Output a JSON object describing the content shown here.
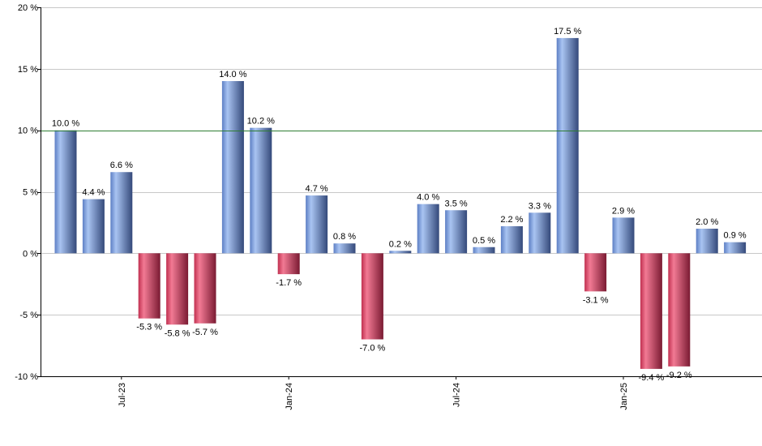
{
  "chart_data": {
    "type": "bar",
    "title": "",
    "xlabel": "",
    "ylabel": "",
    "ylim": [
      -10,
      20
    ],
    "y_ticks": [
      20,
      15,
      10,
      5,
      0,
      -5,
      -10
    ],
    "y_tick_labels": [
      "20 %",
      "15 %",
      "10 %",
      "5 %",
      "0 %",
      "-5 %",
      "-10 %"
    ],
    "x_tick_labels": [
      {
        "label": "Jul-23",
        "index": 2
      },
      {
        "label": "Jan-24",
        "index": 8
      },
      {
        "label": "Jul-24",
        "index": 14
      },
      {
        "label": "Jan-25",
        "index": 20
      }
    ],
    "reference_line": {
      "value": 10,
      "color": "#2e7d32"
    },
    "grid": true,
    "legend": false,
    "colors": {
      "positive": "#7fa3e0",
      "positive_dark": "#34497a",
      "negative": "#e04f6e",
      "negative_dark": "#7a1a32"
    },
    "values": [
      10.0,
      4.4,
      6.6,
      -5.3,
      -5.8,
      -5.7,
      14.0,
      10.2,
      -1.7,
      4.7,
      0.8,
      -7.0,
      0.2,
      4.0,
      3.5,
      0.5,
      2.2,
      3.3,
      17.5,
      -3.1,
      2.9,
      -9.4,
      -9.2,
      2.0,
      0.9
    ],
    "value_labels": [
      "10.0 %",
      "4.4 %",
      "6.6 %",
      "-5.3 %",
      "-5.8 %",
      "-5.7 %",
      "14.0 %",
      "10.2 %",
      "-1.7 %",
      "4.7 %",
      "0.8 %",
      "-7.0 %",
      "0.2 %",
      "4.0 %",
      "3.5 %",
      "0.5 %",
      "2.2 %",
      "3.3 %",
      "17.5 %",
      "-3.1 %",
      "2.9 %",
      "-9.4 %",
      "-9.2 %",
      "2.0 %",
      "0.9 %"
    ]
  }
}
